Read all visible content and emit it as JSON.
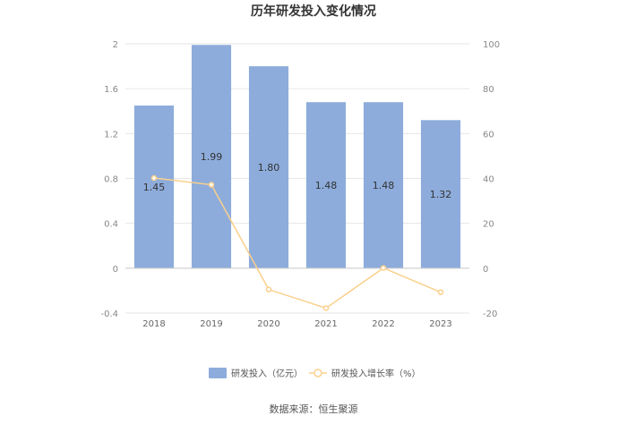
{
  "chart_data": {
    "type": "bar+line",
    "title": "历年研发投入变化情况",
    "categories": [
      "2018",
      "2019",
      "2020",
      "2021",
      "2022",
      "2023"
    ],
    "series": [
      {
        "name": "研发投入（亿元）",
        "type": "bar",
        "axis": "left",
        "color": "#8dacdb",
        "values": [
          1.45,
          1.99,
          1.8,
          1.48,
          1.48,
          1.32
        ],
        "labels": [
          "1.45",
          "1.99",
          "1.80",
          "1.48",
          "1.48",
          "1.32"
        ]
      },
      {
        "name": "研发投入增长率（%）",
        "type": "line",
        "axis": "right",
        "color": "#fad08c",
        "values": [
          40.2,
          37.2,
          -9.5,
          -17.8,
          0.1,
          -10.7
        ]
      }
    ],
    "y_left": {
      "min": -0.4,
      "max": 2,
      "ticks": [
        "2",
        "1.6",
        "1.2",
        "0.8",
        "0.4",
        "0",
        "-0.4"
      ]
    },
    "y_right": {
      "min": -20,
      "max": 100,
      "ticks": [
        "100",
        "80",
        "60",
        "40",
        "20",
        "0",
        "-20"
      ]
    },
    "grid": true,
    "legend_position": "bottom"
  },
  "source": "数据来源：恒生聚源"
}
